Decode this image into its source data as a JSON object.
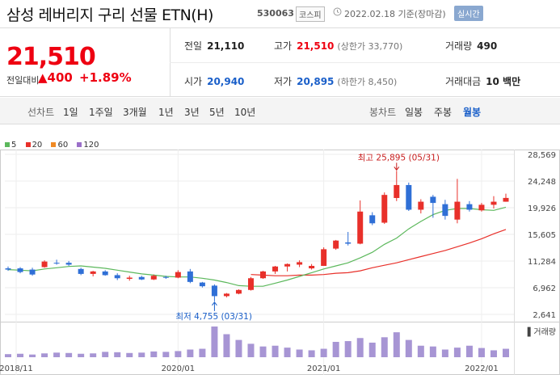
{
  "header": {
    "title": "삼성 레버리지 구리 선물 ETN(H)",
    "code": "530063",
    "market": "코스피",
    "date_text": "2022.02.18 기준(장마감)",
    "realtime_label": "실시간"
  },
  "summary": {
    "price": "21,510",
    "change_label": "전일대비",
    "change_value": "▲400",
    "change_pct": "+1.89%",
    "prev_close_label": "전일",
    "prev_close": "21,110",
    "high_label": "고가",
    "high": "21,510",
    "upper_limit": "(상한가 33,770)",
    "volume_label": "거래량",
    "volume": "490",
    "open_label": "시가",
    "open": "20,940",
    "low_label": "저가",
    "low": "20,895",
    "lower_limit": "(하한가 8,450)",
    "amount_label": "거래대금",
    "amount": "10 백만"
  },
  "periods": {
    "line_label": "선차트",
    "line_items": [
      "1일",
      "1주일",
      "3개월",
      "1년",
      "3년",
      "5년",
      "10년"
    ],
    "candle_label": "봉차트",
    "candle_items": [
      "일봉",
      "주봉",
      "월봉"
    ],
    "active_candle": "월봉"
  },
  "colors": {
    "up": "#e8302a",
    "down": "#2f6fd6",
    "ma5": "#5cb85c",
    "ma20": "#e8302a",
    "ma60": "#f08a24",
    "ma120": "#9b6fc9",
    "volume": "#a795d4"
  },
  "chart_data": {
    "type": "candlestick",
    "legend": [
      {
        "name": "5",
        "color": "#5cb85c"
      },
      {
        "name": "20",
        "color": "#e8302a"
      },
      {
        "name": "60",
        "color": "#f08a24"
      },
      {
        "name": "120",
        "color": "#9b6fc9"
      }
    ],
    "y_ticks": [
      "28,569",
      "24,248",
      "19,926",
      "15,605",
      "11,284",
      "6,962",
      "2,641"
    ],
    "ylim": [
      2641,
      28569
    ],
    "x_ticks": [
      "2018/11",
      "2020/01",
      "2021/01",
      "2022/01"
    ],
    "high_note": "최고 25,895 (05/31)",
    "low_note": "최저 4,755 (03/31)",
    "volume_label": "거래량",
    "candles": [
      {
        "o": 10100,
        "h": 10400,
        "l": 9700,
        "c": 9900
      },
      {
        "o": 10100,
        "h": 10300,
        "l": 9300,
        "c": 9500
      },
      {
        "o": 9900,
        "h": 10200,
        "l": 8900,
        "c": 9100
      },
      {
        "o": 10300,
        "h": 11400,
        "l": 10200,
        "c": 11200
      },
      {
        "o": 11000,
        "h": 11500,
        "l": 10700,
        "c": 10900
      },
      {
        "o": 11000,
        "h": 11300,
        "l": 10500,
        "c": 10700
      },
      {
        "o": 10000,
        "h": 10200,
        "l": 9000,
        "c": 9200
      },
      {
        "o": 9200,
        "h": 9700,
        "l": 8800,
        "c": 9600
      },
      {
        "o": 9600,
        "h": 9800,
        "l": 8900,
        "c": 9000
      },
      {
        "o": 9000,
        "h": 9300,
        "l": 8200,
        "c": 8500
      },
      {
        "o": 8400,
        "h": 8900,
        "l": 8100,
        "c": 8600
      },
      {
        "o": 8700,
        "h": 8900,
        "l": 8200,
        "c": 8300
      },
      {
        "o": 8300,
        "h": 9100,
        "l": 8200,
        "c": 8900
      },
      {
        "o": 8700,
        "h": 8900,
        "l": 8400,
        "c": 8600
      },
      {
        "o": 8600,
        "h": 9800,
        "l": 8500,
        "c": 9500
      },
      {
        "o": 9600,
        "h": 10000,
        "l": 7700,
        "c": 7900
      },
      {
        "o": 7800,
        "h": 7900,
        "l": 7000,
        "c": 7200
      },
      {
        "o": 7300,
        "h": 7500,
        "l": 4755,
        "c": 5600
      },
      {
        "o": 5600,
        "h": 6100,
        "l": 5400,
        "c": 6000
      },
      {
        "o": 6000,
        "h": 6700,
        "l": 5900,
        "c": 6600
      },
      {
        "o": 6600,
        "h": 8700,
        "l": 6500,
        "c": 8500
      },
      {
        "o": 8500,
        "h": 9700,
        "l": 8400,
        "c": 9600
      },
      {
        "o": 9600,
        "h": 10500,
        "l": 9200,
        "c": 10400
      },
      {
        "o": 10400,
        "h": 10900,
        "l": 9600,
        "c": 10800
      },
      {
        "o": 10700,
        "h": 11400,
        "l": 10300,
        "c": 11100
      },
      {
        "o": 10100,
        "h": 10800,
        "l": 9900,
        "c": 10500
      },
      {
        "o": 10500,
        "h": 13500,
        "l": 10500,
        "c": 13200
      },
      {
        "o": 13300,
        "h": 14700,
        "l": 13100,
        "c": 14600
      },
      {
        "o": 14300,
        "h": 16000,
        "l": 13800,
        "c": 14100
      },
      {
        "o": 14100,
        "h": 21100,
        "l": 14000,
        "c": 19300
      },
      {
        "o": 18700,
        "h": 19200,
        "l": 17100,
        "c": 17400
      },
      {
        "o": 17500,
        "h": 22400,
        "l": 17300,
        "c": 22000
      },
      {
        "o": 21500,
        "h": 25895,
        "l": 21000,
        "c": 23600
      },
      {
        "o": 23600,
        "h": 24000,
        "l": 19400,
        "c": 19600
      },
      {
        "o": 19600,
        "h": 21300,
        "l": 19000,
        "c": 20900
      },
      {
        "o": 21700,
        "h": 22000,
        "l": 18300,
        "c": 20700
      },
      {
        "o": 20500,
        "h": 21200,
        "l": 18000,
        "c": 18600
      },
      {
        "o": 18000,
        "h": 24600,
        "l": 17400,
        "c": 20900
      },
      {
        "o": 20500,
        "h": 21000,
        "l": 19300,
        "c": 19600
      },
      {
        "o": 19500,
        "h": 20700,
        "l": 19300,
        "c": 20400
      },
      {
        "o": 20400,
        "h": 21800,
        "l": 19800,
        "c": 20900
      },
      {
        "o": 20900,
        "h": 22200,
        "l": 20900,
        "c": 21510
      }
    ],
    "ma5": [
      9900,
      9800,
      9700,
      10000,
      10200,
      10400,
      10500,
      10300,
      10100,
      9800,
      9500,
      9200,
      9000,
      8800,
      8700,
      8700,
      8500,
      8200,
      7800,
      7300,
      7200,
      7200,
      7700,
      8200,
      8800,
      9400,
      10000,
      10500,
      11000,
      11800,
      12700,
      14000,
      15000,
      16500,
      17700,
      18800,
      19500,
      19800,
      19800,
      19600,
      19500,
      20000
    ],
    "ma20": [
      null,
      null,
      null,
      null,
      null,
      null,
      null,
      null,
      null,
      null,
      null,
      null,
      null,
      null,
      null,
      null,
      null,
      null,
      null,
      null,
      9100,
      9000,
      8900,
      8900,
      9000,
      9000,
      9100,
      9300,
      9400,
      9700,
      10200,
      10600,
      11000,
      11500,
      12000,
      12500,
      13000,
      13600,
      14200,
      14900,
      15700,
      16400
    ],
    "volume": [
      8,
      9,
      7,
      10,
      12,
      11,
      9,
      10,
      14,
      13,
      11,
      12,
      15,
      14,
      16,
      20,
      22,
      80,
      60,
      45,
      35,
      28,
      30,
      25,
      20,
      18,
      22,
      40,
      42,
      50,
      38,
      52,
      65,
      45,
      30,
      28,
      20,
      25,
      30,
      24,
      18,
      22
    ]
  }
}
